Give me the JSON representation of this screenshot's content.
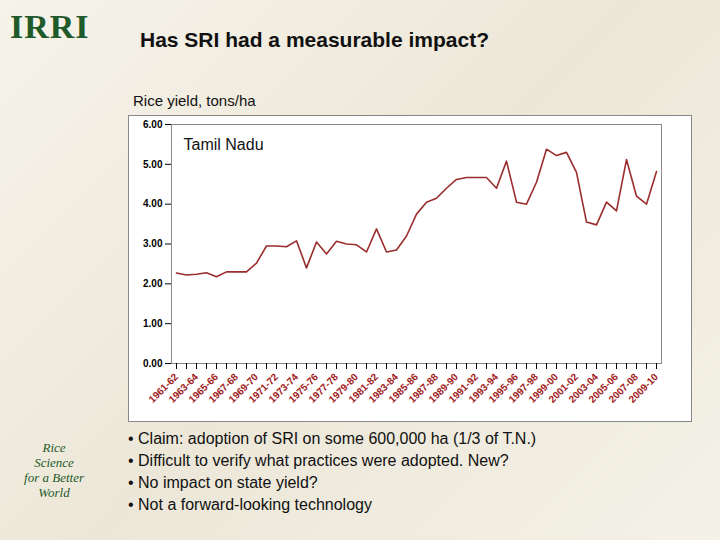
{
  "chart_data": {
    "type": "line",
    "title": "Has SRI had a measurable impact?",
    "subtitle": "Rice yield, tons/ha",
    "annotations": [
      "Tamil Nadu"
    ],
    "categories": [
      "1961-62",
      null,
      "1963-64",
      null,
      "1965-66",
      null,
      "1967-68",
      null,
      "1969-70",
      null,
      "1971-72",
      null,
      "1973-74",
      null,
      "1975-76",
      null,
      "1977-78",
      null,
      "1979-80",
      null,
      "1981-82",
      null,
      "1983-84",
      null,
      "1985-86",
      null,
      "1987-88",
      null,
      "1989-90",
      null,
      "1991-92",
      null,
      "1993-94",
      null,
      "1995-96",
      null,
      "1997-98",
      null,
      "1999-00",
      null,
      "2001-02",
      null,
      "2003-04",
      null,
      "2005-06",
      null,
      "2007-08",
      null,
      "2009-10"
    ],
    "values": [
      2.27,
      2.22,
      2.24,
      2.28,
      2.18,
      2.3,
      2.3,
      2.3,
      2.52,
      2.95,
      2.95,
      2.93,
      3.08,
      2.4,
      3.05,
      2.75,
      3.07,
      3.0,
      2.98,
      2.8,
      3.38,
      2.8,
      2.85,
      3.2,
      3.75,
      4.05,
      4.15,
      4.4,
      4.62,
      4.67,
      4.67,
      4.67,
      4.4,
      5.08,
      4.05,
      4.0,
      4.55,
      5.38,
      5.22,
      5.3,
      4.8,
      3.55,
      3.48,
      4.05,
      3.83,
      5.12,
      4.2,
      4.0,
      4.82
    ],
    "color": "#9b2d2d",
    "ylim": [
      0,
      6
    ],
    "yticks": [
      {
        "value": 0,
        "label": "0.00"
      },
      {
        "value": 1,
        "label": "1.00"
      },
      {
        "value": 2,
        "label": "2.00"
      },
      {
        "value": 3,
        "label": "3.00"
      },
      {
        "value": 4,
        "label": "4.00"
      },
      {
        "value": 5,
        "label": "5.00"
      },
      {
        "value": 6,
        "label": "6.00"
      }
    ],
    "grid": false
  },
  "logo": "IRRI",
  "tagline": [
    "Rice",
    "Science",
    "for a Better",
    "World"
  ],
  "bullets": [
    "Claim: adoption of SRI on some 600,000 ha (1/3 of T.N.)",
    "Difficult to verify what practices were adopted. New?",
    "No impact on state yield?",
    "Not a forward-looking technology"
  ]
}
